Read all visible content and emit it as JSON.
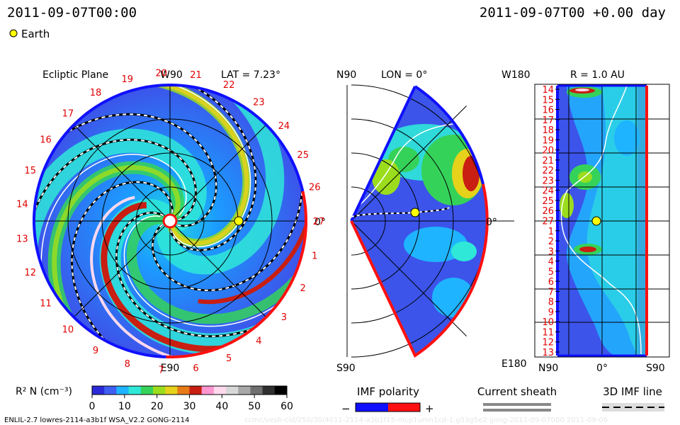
{
  "header": {
    "left_time": "2011-09-07T00:00",
    "right_time": "2011-09-07T00 +0.00 day",
    "legend_label": "Earth"
  },
  "panels": {
    "ecliptic": {
      "title": "Ecliptic Plane",
      "lat": "LAT = 7.23°",
      "top": "W90",
      "bottom": "E90",
      "right": "0°"
    },
    "meridional": {
      "north": "N90",
      "lon": "LON = 0°",
      "south": "S90",
      "right": "0°"
    },
    "radial": {
      "title": "R = 1.0 AU",
      "top_left": "W180",
      "bottom_left": "E180",
      "x_left": "N90",
      "x_mid": "0°",
      "x_right": "S90"
    }
  },
  "carrington_labels": [
    "19",
    "20",
    "21",
    "22",
    "23",
    "24",
    "25",
    "26",
    "27",
    "1",
    "2",
    "3",
    "4",
    "5",
    "6",
    "7",
    "8",
    "9",
    "10",
    "11",
    "12",
    "13",
    "14",
    "15",
    "16",
    "17",
    "18"
  ],
  "radial_rows": [
    "14",
    "15",
    "16",
    "17",
    "18",
    "19",
    "20",
    "21",
    "22",
    "23",
    "24",
    "25",
    "26",
    "27",
    "1",
    "2",
    "3",
    "4",
    "5",
    "6",
    "7",
    "8",
    "9",
    "10",
    "11",
    "12",
    "13"
  ],
  "colorbar": {
    "label": "R² N (cm⁻³)",
    "ticks": [
      "0",
      "10",
      "20",
      "30",
      "40",
      "50",
      "60"
    ],
    "colors": [
      "#2a2ad8",
      "#3f5ff0",
      "#1fb4ff",
      "#2fe8d8",
      "#35d25a",
      "#9bdd1d",
      "#e6d21a",
      "#e67b18",
      "#c91e12",
      "#ff96d0",
      "#ffd9ee",
      "#d8d8d8",
      "#a8a8a8",
      "#6f6f6f",
      "#2f2f2f",
      "#000000"
    ]
  },
  "imf_legend": {
    "title": "IMF polarity",
    "minus": "−",
    "plus": "+",
    "neg_color": "#1010ff",
    "pos_color": "#ff1010"
  },
  "sheath_legend": {
    "title": "Current sheath"
  },
  "imf_line_legend": {
    "title": "3D IMF line"
  },
  "footer": {
    "model": "ENLIL-2.7 lowres-2114-a3b1f WSA_V2.2 GONG-2114",
    "watermark": "ccmc/vesh-cid/250/30/4011-2114-a3b1f15-mcp1umn1cd-1.g53g5e2 gong-2011-09-07000   2011-09-06"
  }
}
